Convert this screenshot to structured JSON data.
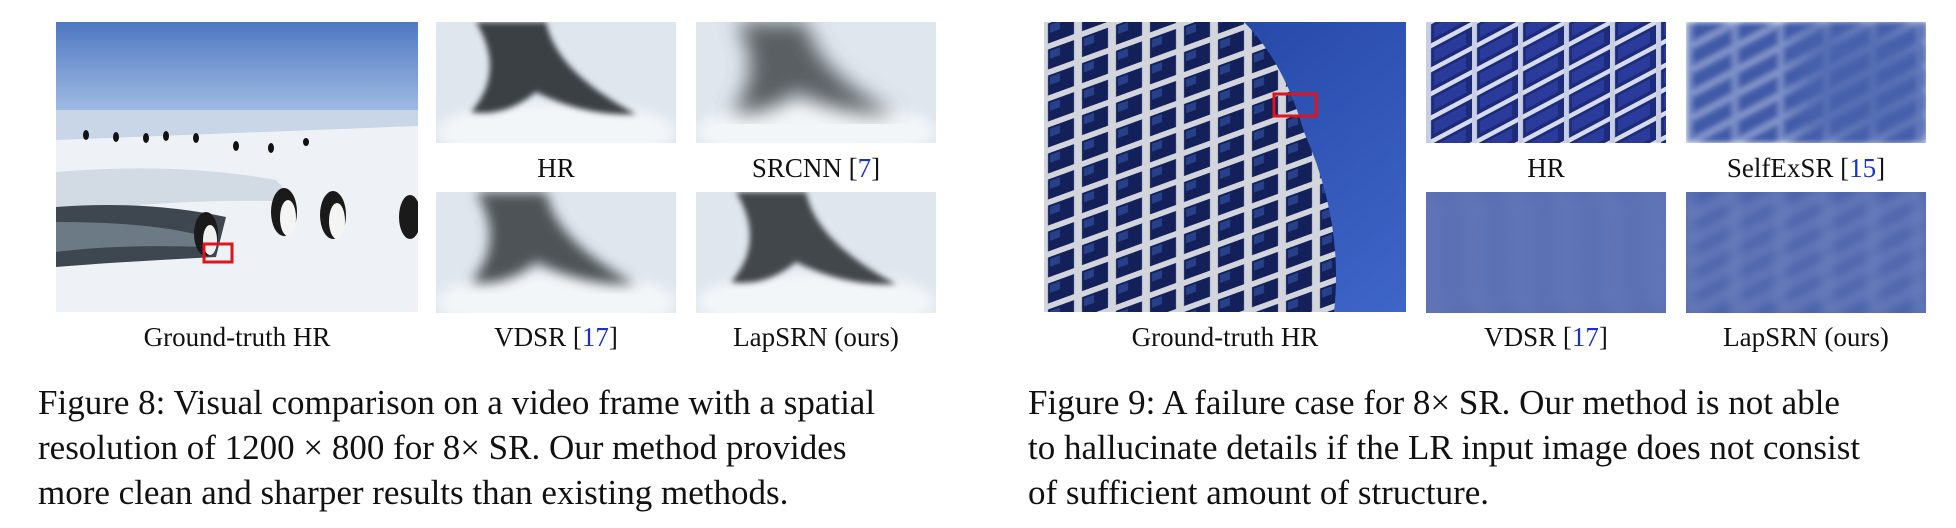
{
  "figure8": {
    "images": {
      "ground_truth": {
        "label": "Ground-truth HR",
        "ref": ""
      },
      "hr": {
        "label": "HR",
        "ref": ""
      },
      "srcnn": {
        "label": "SRCNN [",
        "ref": "7",
        "close": "]"
      },
      "vdsr": {
        "label": "VDSR [",
        "ref": "17",
        "close": "]"
      },
      "lapsrn": {
        "label": "LapSRN (ours)",
        "ref": ""
      }
    },
    "caption_lines": [
      "Figure 8: Visual comparison on a video frame with a spatial",
      "resolution of 1200 × 800 for 8× SR. Our method provides",
      "more clean and sharper results than existing methods."
    ]
  },
  "figure9": {
    "images": {
      "ground_truth": {
        "label": "Ground-truth HR",
        "ref": ""
      },
      "hr": {
        "label": "HR",
        "ref": ""
      },
      "selfexsr": {
        "label": "SelfExSR [",
        "ref": "15",
        "close": "]"
      },
      "vdsr": {
        "label": "VDSR [",
        "ref": "17",
        "close": "]"
      },
      "lapsrn": {
        "label": "LapSRN (ours)",
        "ref": ""
      }
    },
    "caption_lines": [
      "Figure 9: A failure case for 8× SR. Our method is not able",
      "to hallucinate details if the LR input image does not consist",
      "of sufficient amount of structure."
    ]
  },
  "colors": {
    "citation": "#1a2fd0",
    "highlight_box": "#e0141a"
  }
}
